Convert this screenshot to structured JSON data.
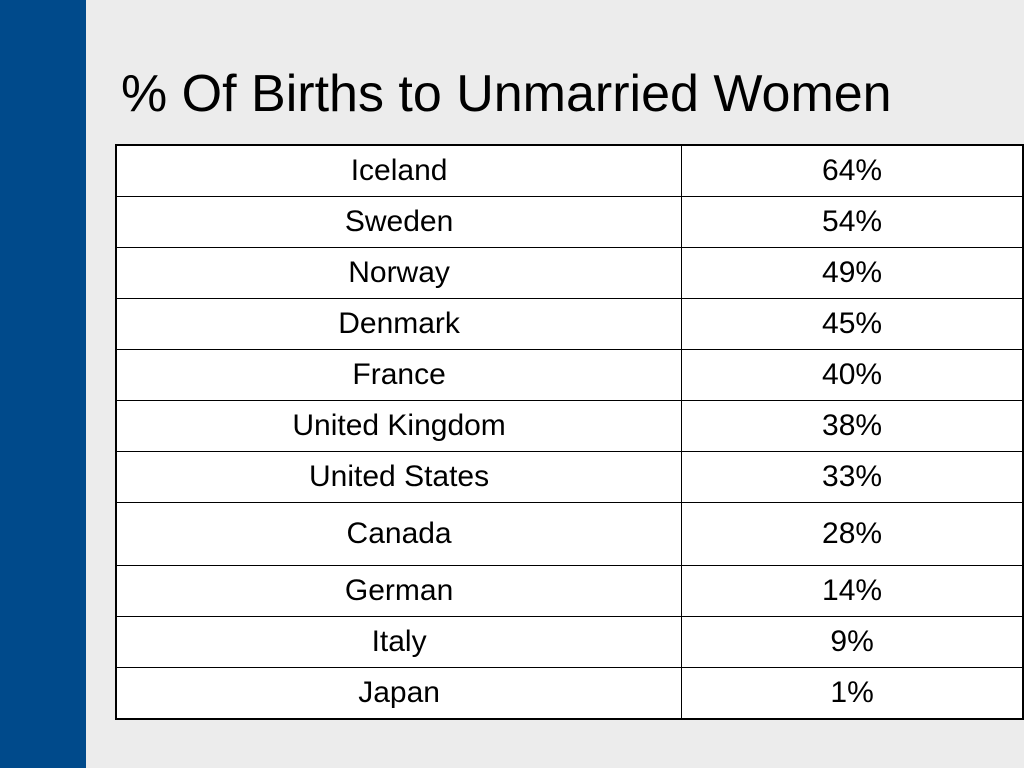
{
  "colors": {
    "sidebar": "#004a8b",
    "background": "#ececec",
    "table_background": "#ffffff",
    "text": "#000000"
  },
  "slide": {
    "title": "% Of Births to Unmarried Women"
  },
  "table": {
    "rows": [
      {
        "country": "Iceland",
        "value": "64%"
      },
      {
        "country": "Sweden",
        "value": "54%"
      },
      {
        "country": "Norway",
        "value": "49%"
      },
      {
        "country": "Denmark",
        "value": "45%"
      },
      {
        "country": "France",
        "value": "40%"
      },
      {
        "country": "United Kingdom",
        "value": "38%"
      },
      {
        "country": "United States",
        "value": "33%"
      },
      {
        "country": "Canada",
        "value": "28%"
      },
      {
        "country": "German",
        "value": "14%"
      },
      {
        "country": "Italy",
        "value": "9%"
      },
      {
        "country": "Japan",
        "value": "1%"
      }
    ]
  }
}
